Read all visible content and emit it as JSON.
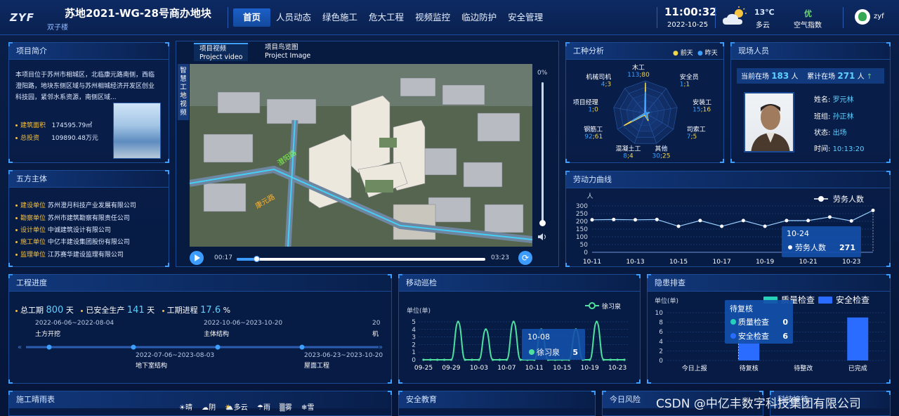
{
  "header": {
    "logo_text": "ZYF",
    "title": "苏地2021-WG-28号商办地块",
    "subtitle": "双子楼",
    "nav": [
      "首页",
      "人员动态",
      "绿色施工",
      "危大工程",
      "视频监控",
      "临边防护",
      "安全管理"
    ],
    "time": "11:00:32",
    "date": "2022-10-25",
    "temp": "13℃",
    "weather": "多云",
    "aqi_value": "优",
    "aqi_label": "空气指数",
    "user": "zyf"
  },
  "intro": {
    "title": "项目简介",
    "text": "本项目位于苏州市相城区，北临康元路南侧，西临澄阳路，地块东侧区域与苏州相城经济开发区创业科技园，紧邻水系资源，南侧区域...",
    "area_label": "建筑面积",
    "area_value": "174595.79㎡",
    "invest_label": "总投资",
    "invest_value": "109890.48万元"
  },
  "parties": {
    "title": "五方主体",
    "items": [
      {
        "k": "建设单位",
        "v": "苏州澄月科技产业发展有限公司"
      },
      {
        "k": "勘察单位",
        "v": "苏州市建筑勘察有限责任公司"
      },
      {
        "k": "设计单位",
        "v": "中诚建筑设计有限公司"
      },
      {
        "k": "施工单位",
        "v": "中亿丰建设集团股份有限公司"
      },
      {
        "k": "监理单位",
        "v": "江苏赛华建设监理有限公司"
      }
    ]
  },
  "video": {
    "tab1_cn": "项目视频",
    "tab1_en": "Project video",
    "tab2_cn": "项目鸟览图",
    "tab2_en": "Project Image",
    "side_label": "智慧工地视频",
    "volume_pct": "0%",
    "time_start": "00:17",
    "time_end": "03:23",
    "progress": 0.08,
    "volume_level": 0.0,
    "road1": "澄阳路",
    "road2": "康元路"
  },
  "trades": {
    "title": "工种分析",
    "legend": [
      "前天",
      "昨天"
    ],
    "colors": {
      "before": "#f3d64a",
      "yesterday": "#3da0ff"
    },
    "items": [
      {
        "name": "木工",
        "v1": 113,
        "v2": 80
      },
      {
        "name": "安全员",
        "v1": 1,
        "v2": 1
      },
      {
        "name": "安装工",
        "v1": 15,
        "v2": 16
      },
      {
        "name": "司索工",
        "v1": 7,
        "v2": 5
      },
      {
        "name": "其他",
        "v1": 30,
        "v2": 25
      },
      {
        "name": "混凝土工",
        "v1": 8,
        "v2": 4
      },
      {
        "name": "钢筋工",
        "v1": 92,
        "v2": 61
      },
      {
        "name": "项目经理",
        "v1": 1,
        "v2": 0
      },
      {
        "name": "机械司机",
        "v1": 4,
        "v2": 3
      }
    ]
  },
  "personnel": {
    "title": "现场人员",
    "onsite_label": "当前在场",
    "onsite": "183",
    "unit": "人",
    "cum_label": "累计在场",
    "cum": "271",
    "name_label": "姓名:",
    "name": "罗元林",
    "team_label": "班组:",
    "team": "孙正林",
    "status_label": "状态:",
    "status": "出场",
    "time_label": "时间:",
    "time": "10:13:20"
  },
  "labor": {
    "title": "劳动力曲线",
    "unit": "人",
    "legend": "劳务人数",
    "tooltip_date": "10-24",
    "tooltip_label": "劳务人数",
    "tooltip_value": "271"
  },
  "progress": {
    "title": "工程进度",
    "total_label": "总工期",
    "total": "800",
    "day": "天",
    "safe_label": "已安全生产",
    "safe": "141",
    "rate_label": "工期进程",
    "rate": "17.6",
    "pct": "%",
    "milestones_top": [
      {
        "date": "2022-06-06~2022-08-04",
        "name": "土方开挖"
      },
      {
        "date": "2022-10-06~2023-10-20",
        "name": "主体结构"
      },
      {
        "date": "20",
        "name": "机"
      }
    ],
    "milestones_bottom": [
      {
        "date": "2022-07-06~2023-08-03",
        "name": "地下室结构"
      },
      {
        "date": "2023-06-23~2023-10-20",
        "name": "屋面工程"
      }
    ]
  },
  "patrol": {
    "title": "移动巡检",
    "unit": "单位(单)",
    "legend": "徐习泉",
    "tooltip_date": "10-08",
    "tooltip_label": "徐习泉",
    "tooltip_value": "5"
  },
  "hazard": {
    "title": "隐患排查",
    "unit": "单位(单)",
    "legend": [
      "质量检查",
      "安全检查"
    ],
    "tooltip_title": "待复核",
    "tooltip_rows": [
      {
        "k": "质量检查",
        "v": "0"
      },
      {
        "k": "安全检查",
        "v": "6"
      }
    ]
  },
  "bottom": {
    "weather_title": "施工晴雨表",
    "weather_items": [
      "☀晴",
      "☁阴",
      "⛅多云",
      "☂雨",
      "▒雾",
      "❄雪"
    ],
    "safety_title": "安全教育",
    "risk_title": "今日风险",
    "reception_title": "科技接待",
    "watermark": "CSDN @中亿丰数字科技集团有限公司"
  },
  "chart_data": [
    {
      "type": "radar",
      "title": "工种分析",
      "categories": [
        "木工",
        "安全员",
        "安装工",
        "司索工",
        "其他",
        "混凝土工",
        "钢筋工",
        "项目经理",
        "机械司机"
      ],
      "series": [
        {
          "name": "前天",
          "values": [
            113,
            1,
            15,
            7,
            30,
            8,
            92,
            1,
            4
          ]
        },
        {
          "name": "昨天",
          "values": [
            80,
            1,
            16,
            5,
            25,
            4,
            61,
            0,
            3
          ]
        }
      ],
      "max": 120
    },
    {
      "type": "line",
      "title": "劳动力曲线",
      "ylabel": "人",
      "x": [
        "10-11",
        "10-12",
        "10-13",
        "10-14",
        "10-15",
        "10-16",
        "10-17",
        "10-18",
        "10-19",
        "10-20",
        "10-21",
        "10-22",
        "10-23",
        "10-24"
      ],
      "xticks": [
        "10-11",
        "10-13",
        "10-15",
        "10-17",
        "10-19",
        "10-21",
        "10-23"
      ],
      "series": [
        {
          "name": "劳务人数",
          "values": [
            210,
            212,
            210,
            212,
            168,
            205,
            168,
            205,
            168,
            205,
            205,
            228,
            203,
            271
          ]
        }
      ],
      "ylim": [
        0,
        300
      ],
      "yticks": [
        0,
        50,
        100,
        150,
        200,
        250,
        300
      ]
    },
    {
      "type": "line",
      "title": "移动巡检",
      "ylabel": "单位(单)",
      "x": [
        "09-25",
        "09-26",
        "09-27",
        "09-28",
        "09-29",
        "09-30",
        "10-01",
        "10-02",
        "10-03",
        "10-04",
        "10-05",
        "10-06",
        "10-07",
        "10-08",
        "10-09",
        "10-10",
        "10-11",
        "10-12",
        "10-13",
        "10-14",
        "10-15",
        "10-16",
        "10-17",
        "10-18",
        "10-19",
        "10-20",
        "10-21",
        "10-22",
        "10-23",
        "10-24"
      ],
      "xticks": [
        "09-25",
        "09-29",
        "10-03",
        "10-07",
        "10-11",
        "10-15",
        "10-19",
        "10-23"
      ],
      "series": [
        {
          "name": "徐习泉",
          "values": [
            0,
            0,
            0,
            0,
            0,
            5,
            0,
            0,
            0,
            4,
            0,
            0,
            0,
            5,
            0,
            0,
            0,
            4,
            0,
            0,
            0,
            0,
            4,
            0,
            0,
            5,
            0,
            0,
            0,
            0
          ]
        }
      ],
      "ylim": [
        0,
        5
      ],
      "yticks": [
        0,
        1,
        2,
        3,
        4,
        5
      ]
    },
    {
      "type": "bar",
      "title": "隐患排查",
      "ylabel": "单位(单)",
      "categories": [
        "今日上报",
        "待复核",
        "待整改",
        "已完成"
      ],
      "series": [
        {
          "name": "质量检查",
          "values": [
            0,
            0,
            0,
            0
          ]
        },
        {
          "name": "安全检查",
          "values": [
            0,
            6,
            0,
            9
          ]
        }
      ],
      "ylim": [
        0,
        10
      ],
      "yticks": [
        0,
        2,
        4,
        6,
        8,
        10
      ]
    }
  ]
}
